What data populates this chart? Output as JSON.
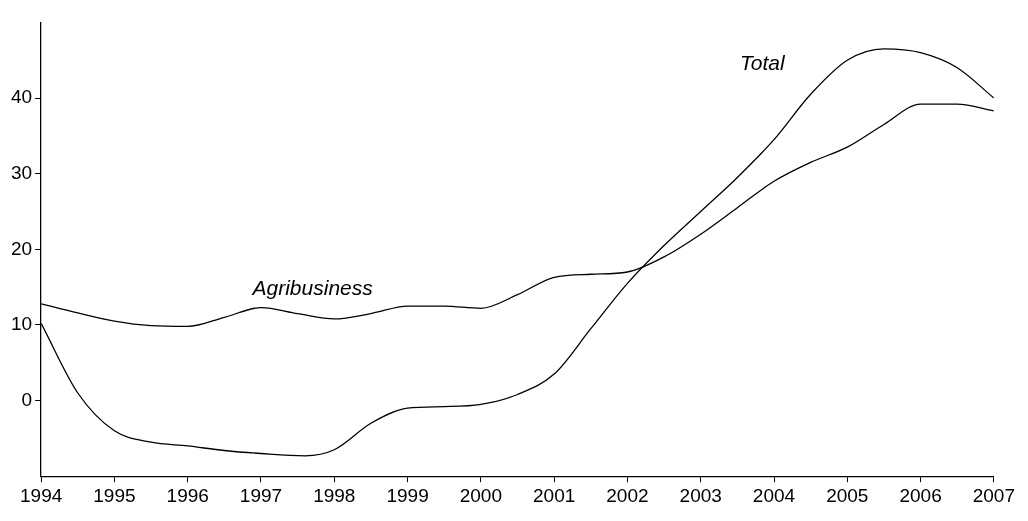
{
  "chart_data": {
    "type": "line",
    "xlim": [
      1994,
      2007
    ],
    "xticks": [
      1994,
      1995,
      1996,
      1997,
      1998,
      1999,
      2000,
      2001,
      2002,
      2003,
      2004,
      2005,
      2006,
      2007
    ],
    "ylim": [
      -10,
      50
    ],
    "yticks": [
      0,
      10,
      20,
      30,
      40
    ],
    "grid": false,
    "legend": false,
    "marker": "none",
    "line_style": "solid",
    "series": [
      {
        "name": "Total",
        "color": "#000000",
        "x": [
          1994,
          1994.5,
          1995,
          1995.5,
          1996,
          1996.5,
          1997,
          1997.6,
          1998,
          1998.5,
          1999,
          1999.5,
          2000,
          2000.5,
          2001,
          2001.5,
          2002,
          2002.5,
          2003,
          2003.5,
          2004,
          2004.5,
          2005,
          2005.5,
          2006,
          2006.5,
          2007
        ],
        "values": [
          10.2,
          1,
          -4,
          -5.5,
          -6,
          -6.6,
          -7,
          -7.3,
          -6.5,
          -3,
          -1,
          -0.8,
          -0.5,
          0.8,
          3.5,
          9.5,
          15.5,
          20.5,
          25,
          29.5,
          34.5,
          40.5,
          45,
          46.5,
          46,
          44,
          40
        ]
      },
      {
        "name": "Agribusiness",
        "color": "#000000",
        "x": [
          1994,
          1994.5,
          1995,
          1995.5,
          1996,
          1996.5,
          1997,
          1997.5,
          1998,
          1998.5,
          1999,
          1999.5,
          2000,
          2000.5,
          2001,
          2001.5,
          2002,
          2002.5,
          2003,
          2003.5,
          2004,
          2004.5,
          2005,
          2005.5,
          2006,
          2006.5,
          2007
        ],
        "values": [
          12.8,
          11.6,
          10.5,
          9.9,
          9.8,
          11,
          12.3,
          11.5,
          10.8,
          11.5,
          12.5,
          12.5,
          12.2,
          14,
          16.3,
          16.7,
          17,
          19,
          22,
          25.5,
          29,
          31.5,
          33.5,
          36.5,
          39.2,
          39.2,
          38.3
        ]
      }
    ]
  }
}
